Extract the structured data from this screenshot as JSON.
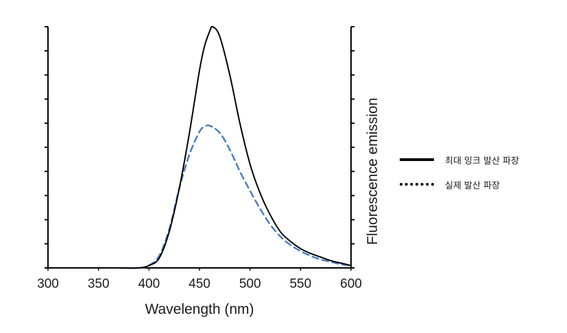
{
  "chart_data": {
    "type": "line",
    "xlabel": "Wavelength (nm)",
    "ylabel": "Fluorescence emission",
    "xlim": [
      300,
      600
    ],
    "ylim": [
      0,
      1
    ],
    "x_ticks": [
      "300",
      "350",
      "400",
      "450",
      "500",
      "550",
      "600"
    ],
    "grid": false,
    "legend_position": "right",
    "series": [
      {
        "name": "최대 잉크 발산 파장",
        "style": "solid",
        "color": "#000000",
        "x": [
          370,
          390,
          400,
          410,
          420,
          430,
          440,
          450,
          455,
          460,
          463,
          470,
          480,
          490,
          500,
          510,
          520,
          530,
          540,
          550,
          560,
          570,
          580,
          590,
          600
        ],
        "y": [
          0.0,
          0.0,
          0.01,
          0.04,
          0.15,
          0.33,
          0.56,
          0.82,
          0.92,
          0.98,
          1.0,
          0.96,
          0.8,
          0.6,
          0.43,
          0.31,
          0.22,
          0.15,
          0.11,
          0.08,
          0.06,
          0.045,
          0.03,
          0.02,
          0.01
        ]
      },
      {
        "name": "실제 발산 파장",
        "style": "dashed",
        "color": "#4a7fc1",
        "x": [
          370,
          390,
          400,
          410,
          420,
          430,
          440,
          450,
          455,
          460,
          470,
          480,
          490,
          500,
          510,
          520,
          530,
          540,
          550,
          560,
          570,
          580,
          590,
          600
        ],
        "y": [
          0.0,
          0.0,
          0.01,
          0.05,
          0.16,
          0.33,
          0.47,
          0.565,
          0.585,
          0.59,
          0.56,
          0.49,
          0.4,
          0.32,
          0.245,
          0.18,
          0.13,
          0.095,
          0.07,
          0.05,
          0.035,
          0.025,
          0.015,
          0.01
        ]
      }
    ]
  }
}
